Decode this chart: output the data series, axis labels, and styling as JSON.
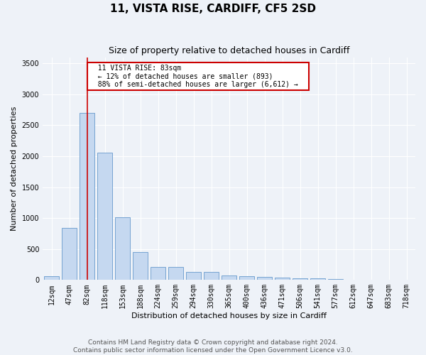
{
  "title": "11, VISTA RISE, CARDIFF, CF5 2SD",
  "subtitle": "Size of property relative to detached houses in Cardiff",
  "xlabel": "Distribution of detached houses by size in Cardiff",
  "ylabel": "Number of detached properties",
  "categories": [
    "12sqm",
    "47sqm",
    "82sqm",
    "118sqm",
    "153sqm",
    "188sqm",
    "224sqm",
    "259sqm",
    "294sqm",
    "330sqm",
    "365sqm",
    "400sqm",
    "436sqm",
    "471sqm",
    "506sqm",
    "541sqm",
    "577sqm",
    "612sqm",
    "647sqm",
    "683sqm",
    "718sqm"
  ],
  "bar_values": [
    60,
    840,
    2700,
    2060,
    1010,
    455,
    215,
    215,
    135,
    135,
    70,
    60,
    50,
    35,
    25,
    25,
    10,
    5,
    5,
    5,
    0
  ],
  "bar_color": "#c5d8f0",
  "bar_edge_color": "#6699cc",
  "reference_line_x": 2,
  "reference_line_color": "#cc0000",
  "annotation_text": "  11 VISTA RISE: 83sqm  \n  ← 12% of detached houses are smaller (893)  \n  88% of semi-detached houses are larger (6,612) →  ",
  "annotation_box_color": "#cc0000",
  "ylim": [
    0,
    3600
  ],
  "yticks": [
    0,
    500,
    1000,
    1500,
    2000,
    2500,
    3000,
    3500
  ],
  "footer_text": "Contains HM Land Registry data © Crown copyright and database right 2024.\nContains public sector information licensed under the Open Government Licence v3.0.",
  "bg_color": "#eef2f8",
  "grid_color": "#ffffff",
  "title_fontsize": 11,
  "subtitle_fontsize": 9,
  "label_fontsize": 8,
  "tick_fontsize": 7,
  "footer_fontsize": 6.5
}
